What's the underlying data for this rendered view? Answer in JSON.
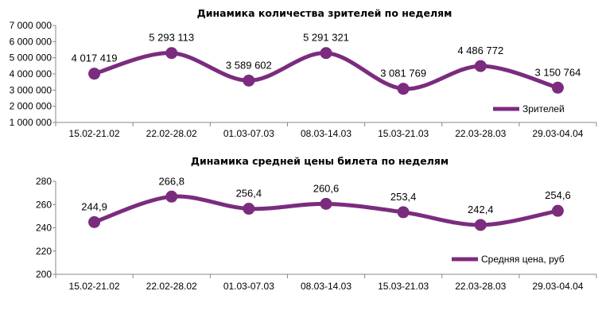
{
  "colors": {
    "series": "#7b2c7e",
    "axis": "#888888"
  },
  "chart_data": [
    {
      "type": "line",
      "title": "Динамика количества зрителей по неделям",
      "categories": [
        "15.02-21.02",
        "22.02-28.02",
        "01.03-07.03",
        "08.03-14.03",
        "15.03-21.03",
        "22.03-28.03",
        "29.03-04.04"
      ],
      "series": [
        {
          "name": "Зрителей",
          "values": [
            4017419,
            5293113,
            3589602,
            5291321,
            3081769,
            4486772,
            3150764
          ],
          "labels": [
            "4 017 419",
            "5 293 113",
            "3 589 602",
            "5 291 321",
            "3 081 769",
            "4 486 772",
            "3 150 764"
          ]
        }
      ],
      "yticks": [
        "1 000 000",
        "2 000 000",
        "3 000 000",
        "4 000 000",
        "5 000 000",
        "6 000 000",
        "7 000 000"
      ],
      "ylim": [
        1000000,
        7000000
      ],
      "smooth": true,
      "markers": true,
      "grid": false,
      "legend": "bottom-right"
    },
    {
      "type": "line",
      "title": "Динамика средней цены билета по неделям",
      "categories": [
        "15.02-21.02",
        "22.02-28.02",
        "01.03-07.03",
        "08.03-14.03",
        "15.03-21.03",
        "22.03-28.03",
        "29.03-04.04"
      ],
      "series": [
        {
          "name": "Средняя цена, руб",
          "values": [
            244.9,
            266.8,
            256.4,
            260.6,
            253.4,
            242.4,
            254.6
          ],
          "labels": [
            "244,9",
            "266,8",
            "256,4",
            "260,6",
            "253,4",
            "242,4",
            "254,6"
          ]
        }
      ],
      "yticks": [
        "200",
        "220",
        "240",
        "260",
        "280"
      ],
      "ylim": [
        200,
        280
      ],
      "smooth": true,
      "markers": true,
      "grid": false,
      "legend": "bottom-right"
    }
  ]
}
